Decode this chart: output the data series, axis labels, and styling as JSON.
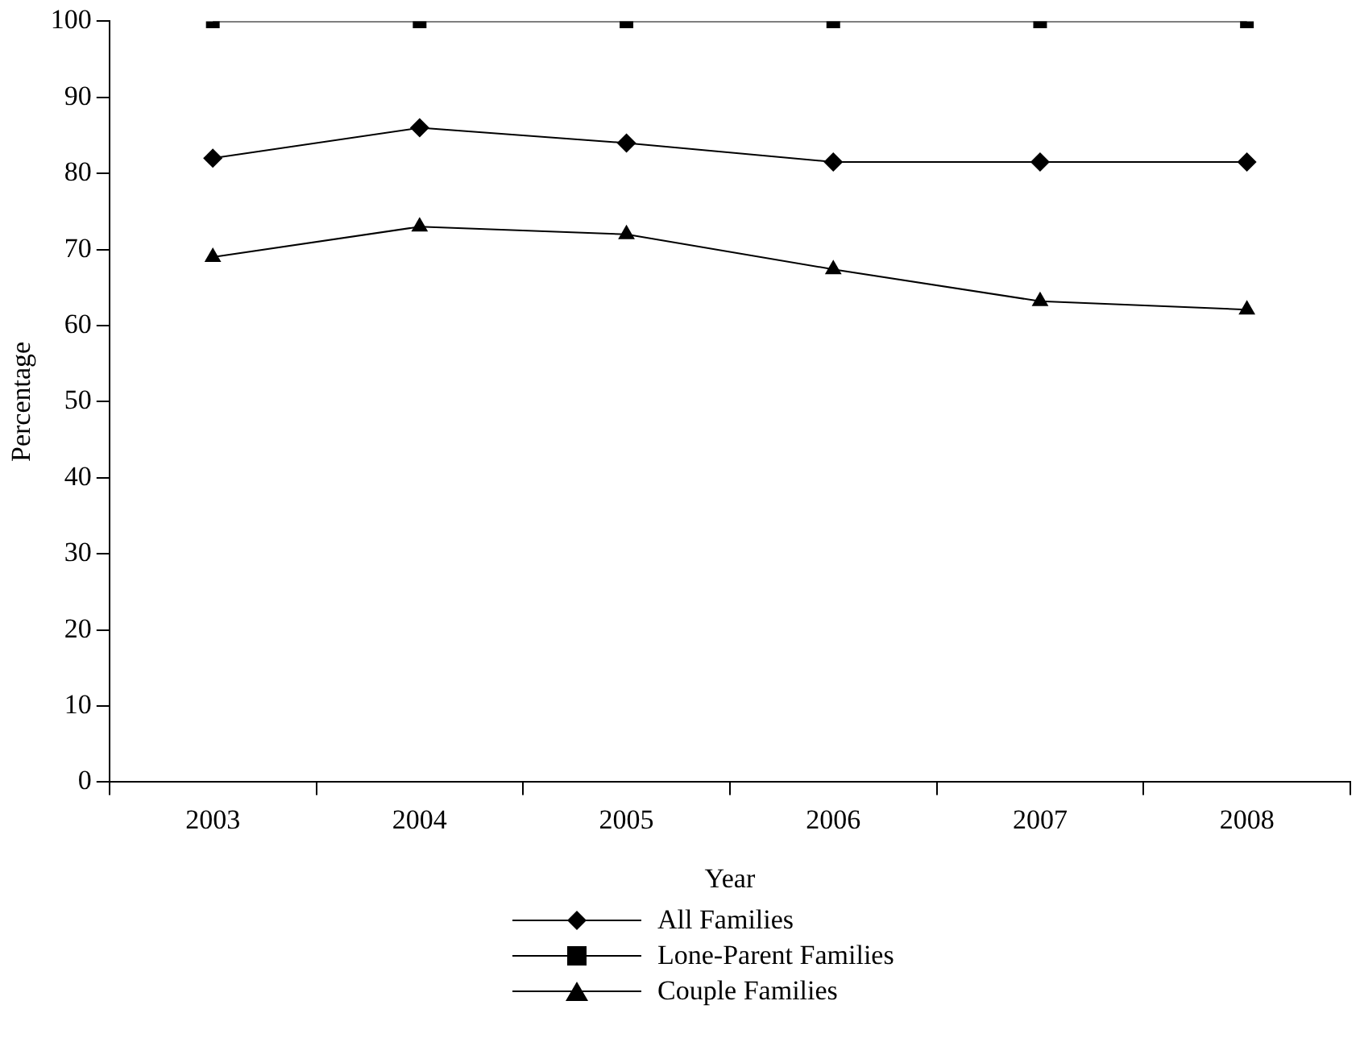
{
  "chart_data": {
    "type": "line",
    "xlabel": "Year",
    "ylabel": "Percentage",
    "categories": [
      "2003",
      "2004",
      "2005",
      "2006",
      "2007",
      "2008"
    ],
    "series": [
      {
        "name": "All Families",
        "color": "#000000",
        "marker": "diamond",
        "values": [
          82,
          86,
          84,
          81.5,
          81.5,
          81.5
        ]
      },
      {
        "name": "Lone-Parent Families",
        "color": "#000000",
        "marker": "square",
        "values": [
          100,
          100,
          100,
          100,
          100,
          100
        ]
      },
      {
        "name": "Couple Families",
        "color": "#000000",
        "marker": "triangle",
        "values": [
          69,
          73,
          72,
          67.4,
          63.2,
          62.1
        ]
      }
    ],
    "ylim": [
      0,
      100
    ],
    "yticks": [
      0,
      10,
      20,
      30,
      40,
      50,
      60,
      70,
      80,
      90,
      100
    ],
    "grid": false,
    "legend": "bottom",
    "line_style": "solid"
  }
}
